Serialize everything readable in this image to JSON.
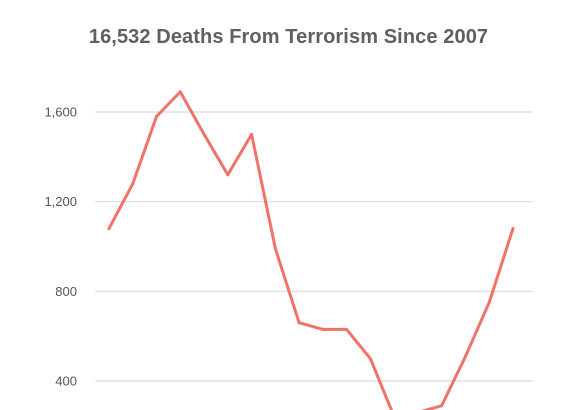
{
  "chart_data": {
    "type": "line",
    "title": "16,532 Deaths From Terrorism Since 2007",
    "xlabel": "",
    "ylabel": "",
    "ylim": [
      200,
      1800
    ],
    "grid": true,
    "y_ticks": [
      400,
      800,
      1200,
      1600
    ],
    "y_tick_labels": [
      "400",
      "800",
      "1,200",
      "1,600"
    ],
    "series": [
      {
        "color": "#f0736a",
        "values": [
          1080,
          1280,
          1580,
          1690,
          1500,
          1320,
          1500,
          990,
          660,
          630,
          630,
          500,
          240,
          260,
          290,
          510,
          750,
          1080
        ]
      }
    ]
  }
}
